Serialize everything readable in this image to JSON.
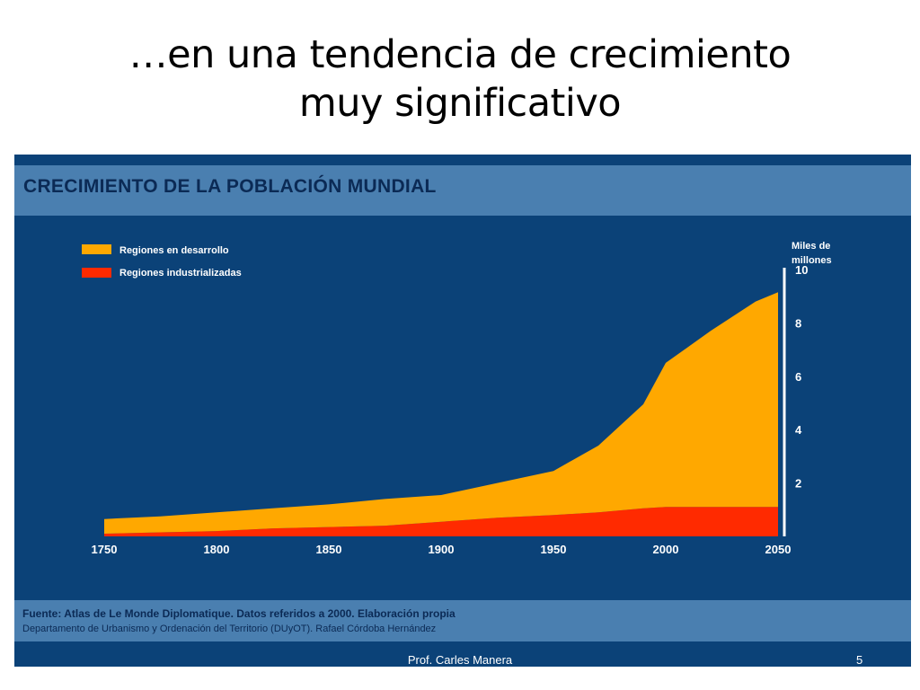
{
  "slide": {
    "title_line1": "…en una tendencia de crecimiento",
    "title_line2": "muy significativo",
    "author": "Prof. Carles Manera",
    "page_number": "5"
  },
  "chart_data": {
    "type": "area",
    "stacked": true,
    "title": "CRECIMIENTO DE LA POBLACIÓN MUNDIAL",
    "ylabel_line1": "Miles de",
    "ylabel_line2": "millones",
    "x": [
      1750,
      1775,
      1800,
      1825,
      1850,
      1875,
      1900,
      1925,
      1950,
      1970,
      1990,
      2000,
      2020,
      2040,
      2050
    ],
    "series": [
      {
        "name": "Regiones industrializadas",
        "color": "#ff2a00",
        "values": [
          0.1,
          0.15,
          0.2,
          0.3,
          0.35,
          0.4,
          0.55,
          0.7,
          0.8,
          0.9,
          1.05,
          1.1,
          1.1,
          1.1,
          1.1
        ]
      },
      {
        "name": "Regiones en desarrollo",
        "color": "#ffa800",
        "values": [
          0.55,
          0.6,
          0.7,
          0.75,
          0.85,
          1.0,
          1.0,
          1.3,
          1.65,
          2.5,
          3.9,
          5.4,
          6.6,
          7.7,
          8.05
        ]
      }
    ],
    "x_ticks": [
      1750,
      1800,
      1850,
      1900,
      1950,
      2000,
      2050
    ],
    "y_ticks": [
      2,
      4,
      6,
      8,
      10
    ],
    "xlim": [
      1750,
      2055
    ],
    "ylim": [
      0,
      10
    ],
    "legend_position": "top-left"
  },
  "source": {
    "line1": "Fuente: Atlas de Le Monde Diplomatique. Datos referidos a 2000. Elaboración propia",
    "line2": "Departamento de Urbanismo y Ordenación del Territorio (DUyOT). Rafael Córdoba Hernández"
  }
}
